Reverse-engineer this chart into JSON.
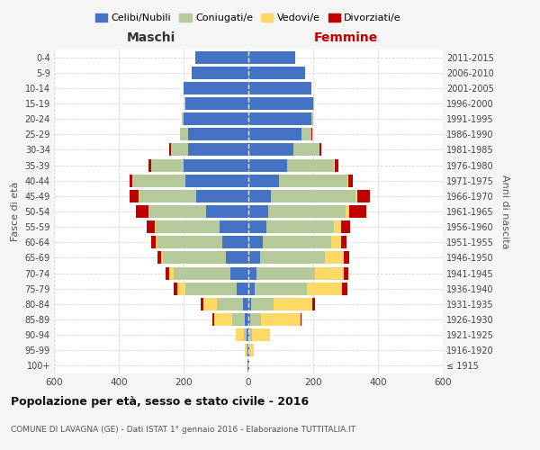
{
  "age_groups": [
    "100+",
    "95-99",
    "90-94",
    "85-89",
    "80-84",
    "75-79",
    "70-74",
    "65-69",
    "60-64",
    "55-59",
    "50-54",
    "45-49",
    "40-44",
    "35-39",
    "30-34",
    "25-29",
    "20-24",
    "15-19",
    "10-14",
    "5-9",
    "0-4"
  ],
  "birth_years": [
    "≤ 1915",
    "1916-1920",
    "1921-1925",
    "1926-1930",
    "1931-1935",
    "1936-1940",
    "1941-1945",
    "1946-1950",
    "1951-1955",
    "1956-1960",
    "1961-1965",
    "1966-1970",
    "1971-1975",
    "1976-1980",
    "1981-1985",
    "1986-1990",
    "1991-1995",
    "1996-2000",
    "2001-2005",
    "2006-2010",
    "2011-2015"
  ],
  "colors": {
    "celibe": "#4472c4",
    "coniugato": "#b5c99a",
    "vedovo": "#ffd966",
    "divorziato": "#c00000"
  },
  "maschi": {
    "celibe": [
      2,
      4,
      5,
      10,
      18,
      35,
      55,
      70,
      80,
      90,
      130,
      160,
      195,
      200,
      185,
      185,
      200,
      195,
      200,
      175,
      165
    ],
    "coniugato": [
      0,
      2,
      8,
      40,
      80,
      160,
      175,
      195,
      200,
      195,
      175,
      175,
      160,
      100,
      55,
      25,
      5,
      2,
      0,
      0,
      0
    ],
    "vedovo": [
      0,
      4,
      25,
      55,
      40,
      25,
      15,
      5,
      5,
      3,
      2,
      3,
      2,
      1,
      0,
      0,
      0,
      0,
      0,
      0,
      0
    ],
    "divorziato": [
      0,
      0,
      2,
      5,
      8,
      10,
      10,
      10,
      15,
      25,
      40,
      30,
      10,
      8,
      5,
      2,
      0,
      0,
      0,
      0,
      0
    ]
  },
  "femmine": {
    "nubile": [
      2,
      3,
      3,
      5,
      8,
      20,
      25,
      35,
      45,
      55,
      60,
      70,
      95,
      120,
      140,
      165,
      195,
      200,
      195,
      175,
      145
    ],
    "coniugata": [
      0,
      2,
      8,
      35,
      70,
      160,
      180,
      200,
      210,
      210,
      240,
      260,
      210,
      145,
      80,
      30,
      5,
      2,
      0,
      0,
      0
    ],
    "vedova": [
      0,
      12,
      55,
      120,
      120,
      110,
      90,
      60,
      30,
      20,
      10,
      5,
      3,
      2,
      0,
      0,
      0,
      0,
      0,
      0,
      0
    ],
    "divorziata": [
      0,
      0,
      2,
      5,
      8,
      15,
      12,
      15,
      18,
      28,
      55,
      40,
      15,
      10,
      5,
      2,
      0,
      0,
      0,
      0,
      0
    ]
  },
  "title": "Popolazione per età, sesso e stato civile - 2016",
  "subtitle": "COMUNE DI LAVAGNA (GE) - Dati ISTAT 1° gennaio 2016 - Elaborazione TUTTITALIA.IT",
  "xlabel_left": "Maschi",
  "xlabel_right": "Femmine",
  "ylabel_left": "Fasce di età",
  "ylabel_right": "Anni di nascita",
  "xlim": 600,
  "legend_labels": [
    "Celibi/Nubili",
    "Coniugati/e",
    "Vedovi/e",
    "Divorziati/e"
  ],
  "bg_color": "#f5f5f5",
  "bar_bg": "#ffffff"
}
